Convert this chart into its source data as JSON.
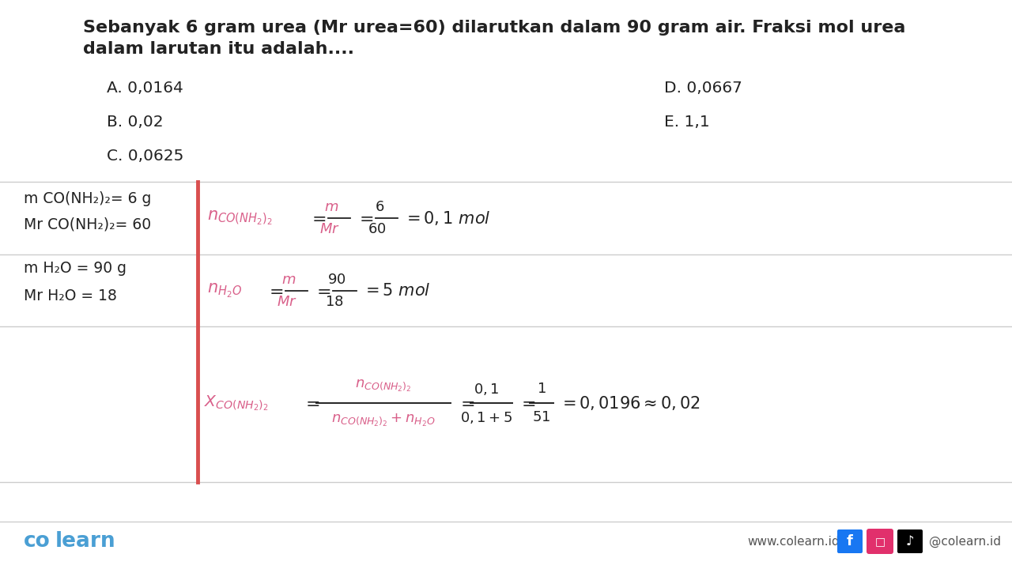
{
  "bg_color": "#ffffff",
  "title_line1": "Sebanyak 6 gram urea (Mr urea=60) dilarutkan dalam 90 gram air. Fraksi mol urea",
  "title_line2": "dalam larutan itu adalah....",
  "options_left": [
    "A. 0,0164",
    "B. 0,02",
    "C. 0,0625"
  ],
  "options_right": [
    "D. 0,0667",
    "E. 1,1"
  ],
  "given_left_col": [
    "m CO(NH₂)₂= 6 g",
    "Mr CO(NH₂)₂= 60",
    "m H₂O = 90 g",
    "Mr H₂O = 18"
  ],
  "divider_color": "#d94f4f",
  "formula_color": "#d9608a",
  "text_color": "#222222",
  "brand_color": "#4a9fd4",
  "line_color": "#cccccc",
  "website_text": "www.colearn.id",
  "social_text": "@colearn.id",
  "icon_fb_color": "#1877f2",
  "icon_ig_color": "#e1306c",
  "icon_tt_color": "#010101"
}
